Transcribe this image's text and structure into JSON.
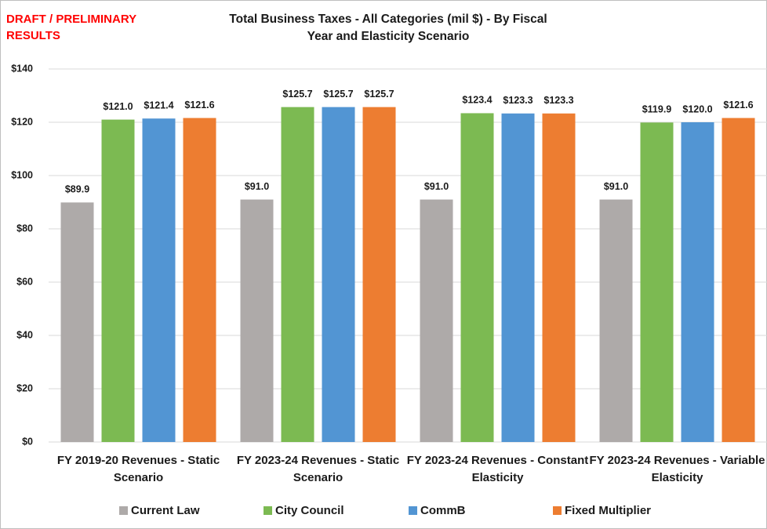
{
  "chart_data": {
    "type": "bar",
    "title": "Total Business Taxes - All Categories (mil $) - By Fiscal Year and Elasticity Scenario",
    "annotation": "DRAFT / PRELIMINARY RESULTS",
    "categories": [
      "FY 2019-20 Revenues - Static Scenario",
      "FY 2023-24 Revenues - Static Scenario",
      "FY 2023-24 Revenues - Constant Elasticity",
      "FY 2023-24 Revenues - Variable Elasticity"
    ],
    "series": [
      {
        "name": "Current Law",
        "color": "#aeaaa9",
        "values": [
          89.9,
          91.0,
          91.0,
          91.0
        ],
        "value_labels": [
          "$89.9",
          "$91.0",
          "$91.0",
          "$91.0"
        ]
      },
      {
        "name": "City Council",
        "color": "#7cba52",
        "values": [
          121.0,
          125.7,
          123.4,
          119.9
        ],
        "value_labels": [
          "$121.0",
          "$125.7",
          "$123.4",
          "$119.9"
        ]
      },
      {
        "name": "CommB",
        "color": "#5295d3",
        "values": [
          121.4,
          125.7,
          123.3,
          120.0
        ],
        "value_labels": [
          "$121.4",
          "$125.7",
          "$123.3",
          "$120.0"
        ]
      },
      {
        "name": "Fixed Multiplier",
        "color": "#ed7d31",
        "values": [
          121.6,
          125.7,
          123.3,
          121.6
        ],
        "value_labels": [
          "$121.6",
          "$125.7",
          "$123.3",
          "$121.6"
        ]
      }
    ],
    "ylim": [
      0,
      140
    ],
    "yticks": [
      {
        "value": 0,
        "label": "$0"
      },
      {
        "value": 20,
        "label": "$20"
      },
      {
        "value": 40,
        "label": "$40"
      },
      {
        "value": 60,
        "label": "$60"
      },
      {
        "value": 80,
        "label": "$80"
      },
      {
        "value": 100,
        "label": "$100"
      },
      {
        "value": 120,
        "label": "$120"
      },
      {
        "value": 140,
        "label": "$140"
      }
    ],
    "grid": true,
    "legend": "bottom"
  }
}
